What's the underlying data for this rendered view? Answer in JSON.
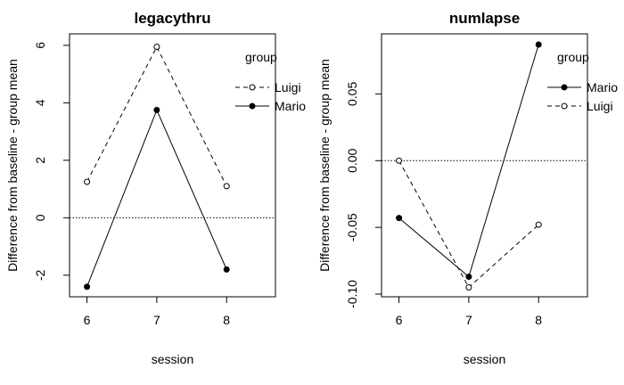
{
  "chart_data": [
    {
      "type": "line",
      "title": "legacythru",
      "xlabel": "session",
      "ylabel": "Difference from baseline - group mean",
      "x": [
        6,
        7,
        8
      ],
      "xlim": [
        5.75,
        8.7
      ],
      "ylim": [
        -2.75,
        6.4
      ],
      "yticks": [
        -2,
        0,
        2,
        4,
        6
      ],
      "ytick_labels": [
        "-2",
        "0",
        "2",
        "4",
        "6"
      ],
      "reference_line": 0,
      "legend_title": "group",
      "legend_position": "top-right",
      "series": [
        {
          "name": "Luigi",
          "values": [
            1.25,
            5.95,
            1.1
          ],
          "line": "dashed",
          "marker": "open-circle"
        },
        {
          "name": "Mario",
          "values": [
            -2.4,
            3.75,
            -1.8
          ],
          "line": "solid",
          "marker": "filled-circle"
        }
      ]
    },
    {
      "type": "line",
      "title": "numlapse",
      "xlabel": "session",
      "ylabel": "Difference from baseline - group mean",
      "x": [
        6,
        7,
        8
      ],
      "xlim": [
        5.75,
        8.7
      ],
      "ylim": [
        -0.102,
        0.095
      ],
      "yticks": [
        -0.1,
        -0.05,
        0.0,
        0.05
      ],
      "ytick_labels": [
        "-0.10",
        "-0.05",
        "0.00",
        "0.05"
      ],
      "reference_line": 0,
      "legend_title": "group",
      "legend_position": "top-right",
      "series": [
        {
          "name": "Mario",
          "values": [
            -0.043,
            -0.087,
            0.087
          ],
          "line": "solid",
          "marker": "filled-circle"
        },
        {
          "name": "Luigi",
          "values": [
            0.0,
            -0.095,
            -0.048
          ],
          "line": "dashed",
          "marker": "open-circle"
        }
      ]
    }
  ]
}
